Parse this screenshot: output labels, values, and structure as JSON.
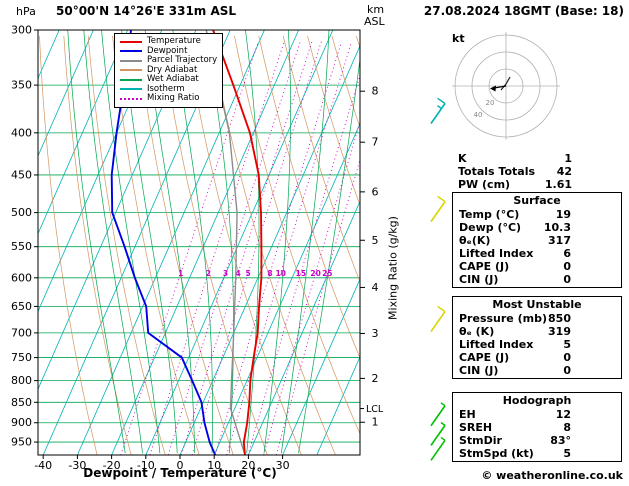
{
  "header": {
    "pressure_unit": "hPa",
    "station": "50°00'N 14°26'E 331m ASL",
    "datetime": "27.08.2024 18GMT (Base: 18)",
    "km_label": "km",
    "asl_label": "ASL"
  },
  "legend": {
    "items": [
      {
        "label": "Temperature",
        "color": "#e60000",
        "line_style": "solid"
      },
      {
        "label": "Dewpoint",
        "color": "#0000e6",
        "line_style": "solid"
      },
      {
        "label": "Parcel Trajectory",
        "color": "#8c8c8c",
        "line_style": "solid"
      },
      {
        "label": "Dry Adiabat",
        "color": "#d2955f",
        "line_style": "solid"
      },
      {
        "label": "Wet Adiabat",
        "color": "#00a651",
        "line_style": "solid"
      },
      {
        "label": "Isotherm",
        "color": "#00b2b2",
        "line_style": "solid"
      },
      {
        "label": "Mixing Ratio",
        "color": "#cc00cc",
        "line_style": "dotted"
      }
    ]
  },
  "axes": {
    "x_label": "Dewpoint / Temperature (°C)",
    "mixing_ratio_label": "Mixing Ratio (g/kg)",
    "lcl_label": "LCL"
  },
  "chart_data": {
    "type": "line",
    "subtype": "skewt_logp_sounding",
    "title": "50°00'N 14°26'E 331m ASL",
    "pressure_ticks_hpa": [
      300,
      350,
      400,
      450,
      500,
      550,
      600,
      650,
      700,
      750,
      800,
      850,
      900,
      950
    ],
    "pressure_range_hpa": [
      300,
      985
    ],
    "temp_ticks_c": [
      -40,
      -30,
      -20,
      -10,
      0,
      10,
      20,
      30
    ],
    "km_asl_ticks": [
      1,
      2,
      3,
      4,
      5,
      6,
      7,
      8
    ],
    "mixing_ratio_lines_g_kg": [
      1,
      2,
      3,
      4,
      5,
      8,
      10,
      15,
      20,
      25
    ],
    "isotherms_c": {
      "min": -120,
      "max": 40,
      "step": 10
    },
    "dry_adiabats_theta_k": {
      "min": 250,
      "max": 450,
      "step": 10
    },
    "wet_adiabats_start_c": {
      "min": -15,
      "max": 35,
      "step": 5
    },
    "lcl_pressure_hpa": 865,
    "series": [
      {
        "name": "Temperature",
        "color": "#e60000",
        "points_p_t": [
          [
            985,
            19
          ],
          [
            950,
            17
          ],
          [
            900,
            15.5
          ],
          [
            850,
            13.5
          ],
          [
            800,
            11
          ],
          [
            750,
            9
          ],
          [
            700,
            7
          ],
          [
            650,
            4
          ],
          [
            600,
            1
          ],
          [
            550,
            -3
          ],
          [
            500,
            -7.5
          ],
          [
            450,
            -13
          ],
          [
            400,
            -21
          ],
          [
            350,
            -32
          ],
          [
            300,
            -45
          ]
        ]
      },
      {
        "name": "Dewpoint",
        "color": "#0000e6",
        "points_p_t": [
          [
            985,
            10.3
          ],
          [
            950,
            7
          ],
          [
            900,
            3
          ],
          [
            850,
            -0.5
          ],
          [
            800,
            -6
          ],
          [
            750,
            -12
          ],
          [
            700,
            -25
          ],
          [
            650,
            -29
          ],
          [
            600,
            -36
          ],
          [
            550,
            -43
          ],
          [
            500,
            -51
          ],
          [
            450,
            -56
          ],
          [
            400,
            -60
          ],
          [
            350,
            -64
          ],
          [
            300,
            -69
          ]
        ]
      },
      {
        "name": "Parcel Trajectory",
        "color": "#8c8c8c",
        "points_p_t": [
          [
            985,
            19
          ],
          [
            865,
            8.8
          ],
          [
            800,
            5.5
          ],
          [
            700,
            0
          ],
          [
            600,
            -6.5
          ],
          [
            500,
            -14.5
          ],
          [
            400,
            -27
          ],
          [
            300,
            -47
          ]
        ]
      }
    ],
    "wind_barbs": [
      {
        "pressure_hpa": 380,
        "speed_kt": 15,
        "color": "#00b2b2"
      },
      {
        "pressure_hpa": 500,
        "speed_kt": 10,
        "color": "#d6d600"
      },
      {
        "pressure_hpa": 680,
        "speed_kt": 10,
        "color": "#d6d600"
      },
      {
        "pressure_hpa": 885,
        "speed_kt": 5,
        "color": "#00c000"
      },
      {
        "pressure_hpa": 935,
        "speed_kt": 5,
        "color": "#00c000"
      },
      {
        "pressure_hpa": 975,
        "speed_kt": 5,
        "color": "#00c000"
      }
    ],
    "colors": {
      "isobar": "#00a651",
      "isotherm": "#00b2b2",
      "dry_adiabat": "#d2955f",
      "wet_adiabat": "#00a651",
      "mixing_ratio": "#cc00cc"
    }
  },
  "hodograph": {
    "unit_label": "kt",
    "ring_step_kt": 20,
    "ring_labels": [
      "20",
      "40"
    ]
  },
  "panels": {
    "indices": {
      "rows": [
        {
          "label": "K",
          "value": "1"
        },
        {
          "label": "Totals Totals",
          "value": "42"
        },
        {
          "label": "PW (cm)",
          "value": "1.61"
        }
      ]
    },
    "surface": {
      "title": "Surface",
      "rows": [
        {
          "label": "Temp (°C)",
          "value": "19"
        },
        {
          "label": "Dewp (°C)",
          "value": "10.3"
        },
        {
          "label": "θₑ(K)",
          "value": "317"
        },
        {
          "label": "Lifted Index",
          "value": "6"
        },
        {
          "label": "CAPE (J)",
          "value": "0"
        },
        {
          "label": "CIN (J)",
          "value": "0"
        }
      ]
    },
    "most_unstable": {
      "title": "Most Unstable",
      "rows": [
        {
          "label": "Pressure (mb)",
          "value": "850"
        },
        {
          "label": "θₑ (K)",
          "value": "319"
        },
        {
          "label": "Lifted Index",
          "value": "5"
        },
        {
          "label": "CAPE (J)",
          "value": "0"
        },
        {
          "label": "CIN (J)",
          "value": "0"
        }
      ]
    },
    "hodograph_panel": {
      "title": "Hodograph",
      "rows": [
        {
          "label": "EH",
          "value": "12"
        },
        {
          "label": "SREH",
          "value": "8"
        },
        {
          "label": "StmDir",
          "value": "83°"
        },
        {
          "label": "StmSpd (kt)",
          "value": "5"
        }
      ]
    }
  },
  "footer": {
    "copyright": "© weatheronline.co.uk"
  }
}
